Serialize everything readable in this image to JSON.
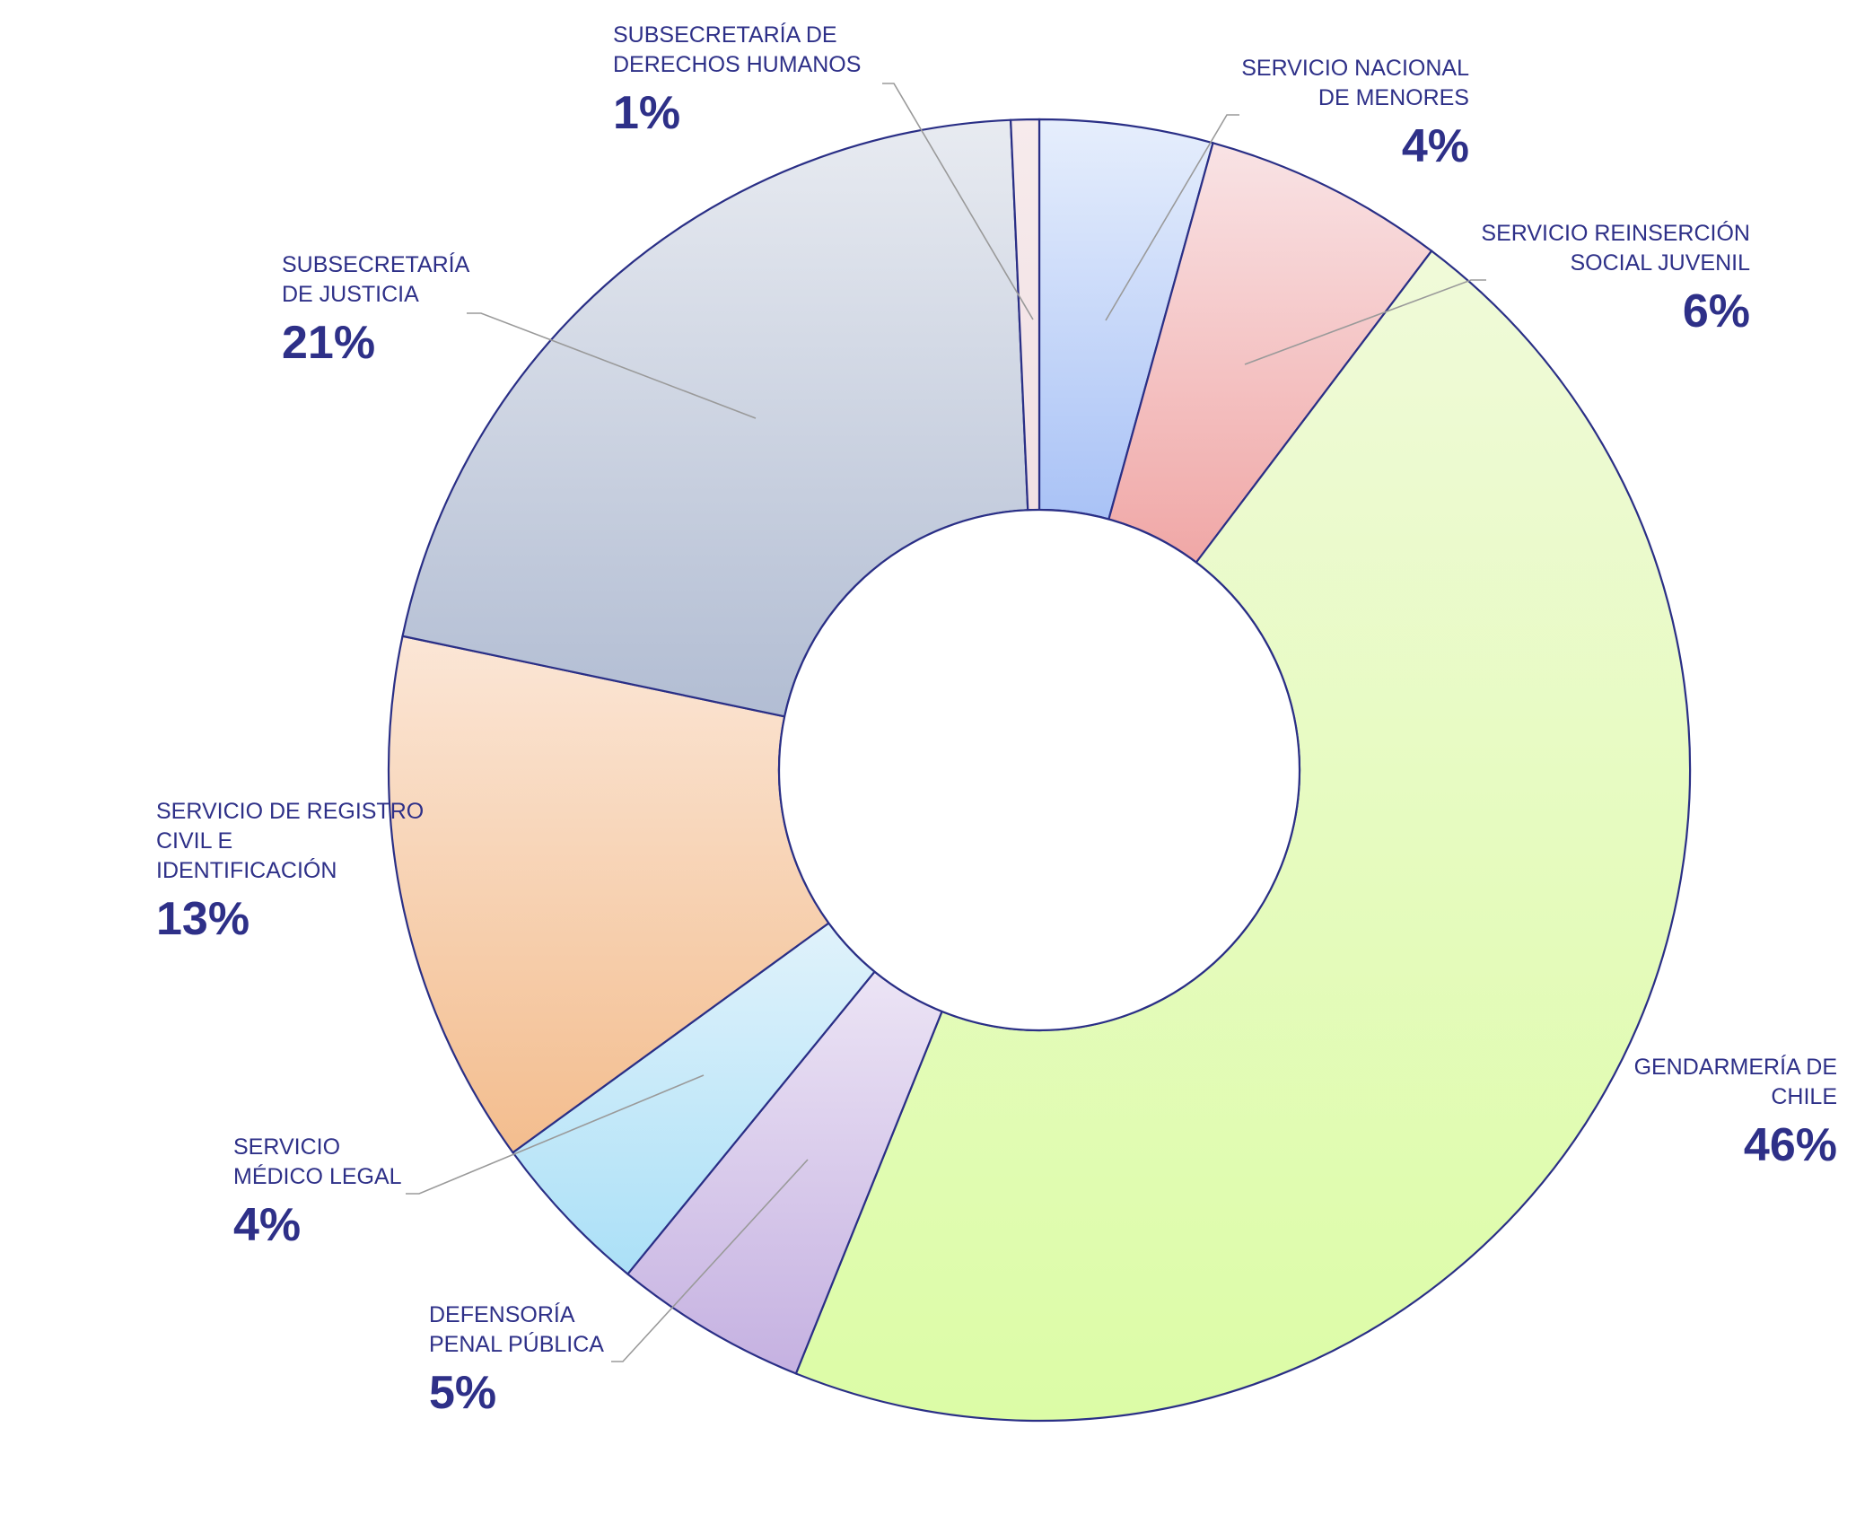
{
  "chart_data": {
    "type": "pie",
    "title": "",
    "donut": true,
    "start_angle_deg": 0,
    "direction": "clockwise",
    "slices": [
      {
        "name_lines": [
          "SERVICIO NACIONAL",
          "DE MENORES"
        ],
        "pct_label": "4%",
        "value": 4.3,
        "color_top": "#e6eefc",
        "color_bottom": "#a9c2f6"
      },
      {
        "name_lines": [
          "SERVICIO REINSERCIÓN",
          "SOCIAL JUVENIL"
        ],
        "pct_label": "6%",
        "value": 6.0,
        "color_top": "#f9e3e5",
        "color_bottom": "#f0a7a6"
      },
      {
        "name_lines": [
          "GENDARMERÍA DE",
          "CHILE"
        ],
        "pct_label": "46%",
        "value": 45.8,
        "color_top": "#f0fad9",
        "color_bottom": "#dcfca6"
      },
      {
        "name_lines": [
          "DEFENSORÍA",
          "PENAL PÚBLICA"
        ],
        "pct_label": "5%",
        "value": 4.8,
        "color_top": "#ece4f5",
        "color_bottom": "#c5b1e1"
      },
      {
        "name_lines": [
          "SERVICIO",
          "MÉDICO LEGAL"
        ],
        "pct_label": "4%",
        "value": 4.1,
        "color_top": "#e0f2fb",
        "color_bottom": "#abe0f7"
      },
      {
        "name_lines": [
          "SERVICIO DE REGISTRO",
          "CIVIL E",
          "IDENTIFICACIÓN"
        ],
        "pct_label": "13%",
        "value": 13.3,
        "color_top": "#fbe6d6",
        "color_bottom": "#f3bd8e"
      },
      {
        "name_lines": [
          "SUBSECRETARÍA",
          "DE JUSTICIA"
        ],
        "pct_label": "21%",
        "value": 21.0,
        "color_top": "#e8ebf1",
        "color_bottom": "#b2bdd3"
      },
      {
        "name_lines": [
          "SUBSECRETARÍA DE",
          "DERECHOS HUMANOS"
        ],
        "pct_label": "1%",
        "value": 0.7,
        "color_top": "#f7ebec",
        "color_bottom": "#f0dfe3"
      }
    ]
  }
}
